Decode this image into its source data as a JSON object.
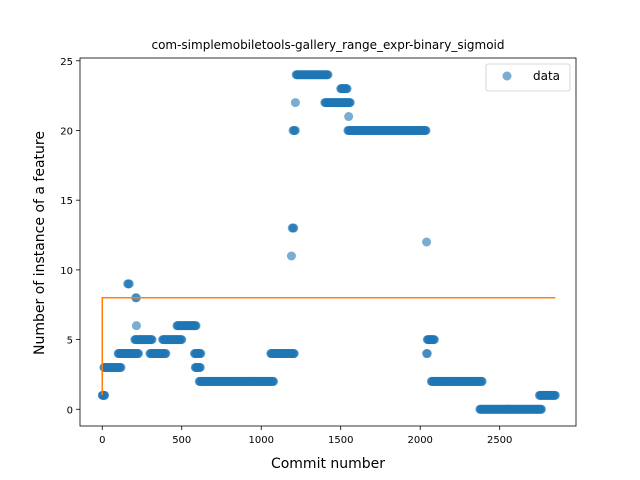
{
  "chart_data": {
    "type": "scatter",
    "title": "com-simplemobiletools-gallery_range_expr-binary_sigmoid",
    "xlabel": "Commit number",
    "ylabel": "Number of instance of a feature",
    "xlim": [
      -140,
      2980
    ],
    "ylim": [
      -1.2,
      25.2
    ],
    "xticks": [
      0,
      500,
      1000,
      1500,
      2000,
      2500
    ],
    "yticks": [
      0,
      5,
      10,
      15,
      20,
      25
    ],
    "grid": false,
    "legend": {
      "placement": "upper right",
      "entries": [
        "data"
      ]
    },
    "colors": {
      "data": "#1f77b4",
      "fit": "#ff7f0e"
    },
    "series": [
      {
        "name": "data",
        "kind": "scatter",
        "segments": [
          {
            "x_start": 0,
            "x_end": 15,
            "step": 3,
            "y": 1
          },
          {
            "x_start": 10,
            "x_end": 120,
            "step": 4,
            "y": 3
          },
          {
            "x_start": 100,
            "x_end": 230,
            "step": 4,
            "y": 4
          },
          {
            "x_start": 160,
            "x_end": 170,
            "step": 5,
            "y": 9
          },
          {
            "x_start": 210,
            "x_end": 215,
            "step": 5,
            "y": 8
          },
          {
            "x_start": 215,
            "x_end": 215,
            "step": 5,
            "y": 6
          },
          {
            "x_start": 205,
            "x_end": 315,
            "step": 4,
            "y": 5
          },
          {
            "x_start": 300,
            "x_end": 400,
            "step": 4,
            "y": 4
          },
          {
            "x_start": 380,
            "x_end": 500,
            "step": 4,
            "y": 5
          },
          {
            "x_start": 470,
            "x_end": 590,
            "step": 4,
            "y": 6
          },
          {
            "x_start": 580,
            "x_end": 620,
            "step": 4,
            "y": 4
          },
          {
            "x_start": 585,
            "x_end": 620,
            "step": 4,
            "y": 3
          },
          {
            "x_start": 610,
            "x_end": 1080,
            "step": 4,
            "y": 2
          },
          {
            "x_start": 1060,
            "x_end": 1210,
            "step": 4,
            "y": 4
          },
          {
            "x_start": 1190,
            "x_end": 1190,
            "step": 4,
            "y": 11
          },
          {
            "x_start": 1195,
            "x_end": 1205,
            "step": 5,
            "y": 13
          },
          {
            "x_start": 1200,
            "x_end": 1215,
            "step": 5,
            "y": 20
          },
          {
            "x_start": 1215,
            "x_end": 1215,
            "step": 5,
            "y": 22
          },
          {
            "x_start": 1220,
            "x_end": 1420,
            "step": 4,
            "y": 24
          },
          {
            "x_start": 1400,
            "x_end": 1560,
            "step": 4,
            "y": 22
          },
          {
            "x_start": 1500,
            "x_end": 1540,
            "step": 4,
            "y": 23
          },
          {
            "x_start": 1550,
            "x_end": 1550,
            "step": 4,
            "y": 21
          },
          {
            "x_start": 1545,
            "x_end": 2040,
            "step": 4,
            "y": 20
          },
          {
            "x_start": 2040,
            "x_end": 2040,
            "step": 4,
            "y": 12
          },
          {
            "x_start": 2040,
            "x_end": 2045,
            "step": 5,
            "y": 4
          },
          {
            "x_start": 2045,
            "x_end": 2090,
            "step": 4,
            "y": 5
          },
          {
            "x_start": 2070,
            "x_end": 2390,
            "step": 4,
            "y": 2
          },
          {
            "x_start": 2375,
            "x_end": 2765,
            "step": 4,
            "y": 0
          },
          {
            "x_start": 2750,
            "x_end": 2850,
            "step": 4,
            "y": 1
          }
        ]
      },
      {
        "name": "",
        "kind": "step-line",
        "points": [
          [
            0,
            1
          ],
          [
            0,
            8
          ],
          [
            2850,
            8
          ]
        ]
      }
    ]
  }
}
